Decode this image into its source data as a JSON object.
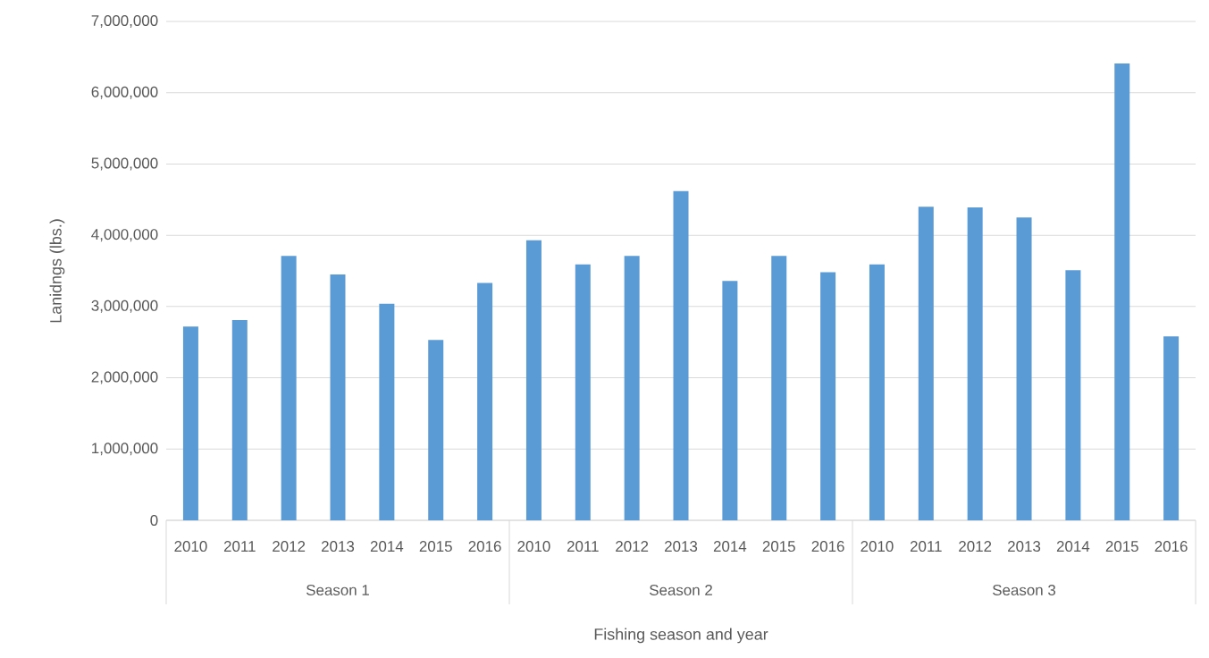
{
  "chart_data": {
    "type": "bar",
    "xlabel": "Fishing season and year",
    "ylabel": "Lanidngs (lbs.)",
    "categories": [
      "2010",
      "2011",
      "2012",
      "2013",
      "2014",
      "2015",
      "2016",
      "2010",
      "2011",
      "2012",
      "2013",
      "2014",
      "2015",
      "2016",
      "2010",
      "2011",
      "2012",
      "2013",
      "2014",
      "2015",
      "2016"
    ],
    "annotations": [
      "Season 1",
      "Season 2",
      "Season 3"
    ],
    "values": [
      2720000,
      2810000,
      3710000,
      3450000,
      3040000,
      2530000,
      3330000,
      3930000,
      3590000,
      3710000,
      4620000,
      3360000,
      3710000,
      3480000,
      3590000,
      4400000,
      4390000,
      4250000,
      3510000,
      6410000,
      2580000
    ],
    "color": "#5b9bd5",
    "ylim": [
      0,
      7000000
    ],
    "yticks": [
      0,
      {
        "value": 1000000,
        "label": "1,000,000"
      },
      {
        "value": 2000000,
        "label": "2,000,000"
      },
      {
        "value": 3000000,
        "label": "3,000,000"
      },
      {
        "value": 4000000,
        "label": "4,000,000"
      },
      {
        "value": 5000000,
        "label": "5,000,000"
      },
      {
        "value": 6000000,
        "label": "6,000,000"
      },
      {
        "value": 7000000,
        "label": "7,000,000"
      }
    ],
    "grid": "y"
  }
}
